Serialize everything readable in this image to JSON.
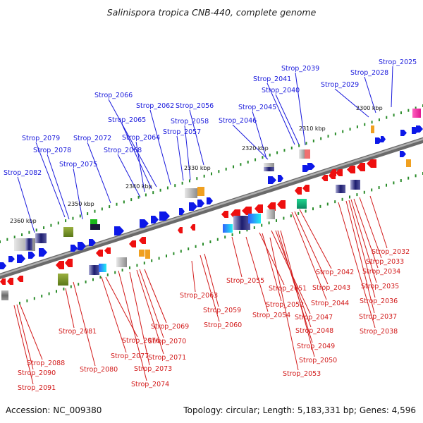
{
  "title": "Salinispora tropica CNB-440, complete genome",
  "footer": {
    "accession": "Accession: NC_009380",
    "topology": "Topology: circular; Length: 5,183,331 bp; Genes: 4,596"
  },
  "ruler": [
    "2300 kbp",
    "2310 kbp",
    "2320 kbp",
    "2330 kbp",
    "2340 kbp",
    "2350 kbp",
    "2360 kbp"
  ],
  "labels_forward": [
    "Strop_2025",
    "Strop_2028",
    "Strop_2029",
    "Strop_2039",
    "Strop_2041",
    "Strop_2040",
    "Strop_2045",
    "Strop_2046",
    "Strop_2056",
    "Strop_2062",
    "Strop_2058",
    "Strop_2057",
    "Strop_2066",
    "Strop_2065",
    "Strop_2064",
    "Strop_2068",
    "Strop_2072",
    "Strop_2079",
    "Strop_2078",
    "Strop_2075",
    "Strop_2082"
  ],
  "labels_reverse": [
    "Strop_2032",
    "Strop_2033",
    "Strop_2034",
    "Strop_2035",
    "Strop_2036",
    "Strop_2037",
    "Strop_2038",
    "Strop_2042",
    "Strop_2043",
    "Strop_2044",
    "Strop_2055",
    "Strop_2051",
    "Strop_2052",
    "Strop_2054",
    "Strop_2047",
    "Strop_2048",
    "Strop_2049",
    "Strop_2050",
    "Strop_2053",
    "Strop_2063",
    "Strop_2059",
    "Strop_2060",
    "Strop_2069",
    "Strop_2070",
    "Strop_2071",
    "Strop_2073",
    "Strop_2074",
    "Strop_2076",
    "Strop_2077",
    "Strop_2080",
    "Strop_2081",
    "Strop_2088",
    "Strop_2090",
    "Strop_2091"
  ],
  "colors": {
    "forward_label": "#1a1adc",
    "reverse_label": "#d21a1a",
    "forward_gene": "#0c18e8",
    "reverse_gene": "#ee0f0f",
    "backbone": "#8a8a8a",
    "tick": "#2a8c2a"
  }
}
